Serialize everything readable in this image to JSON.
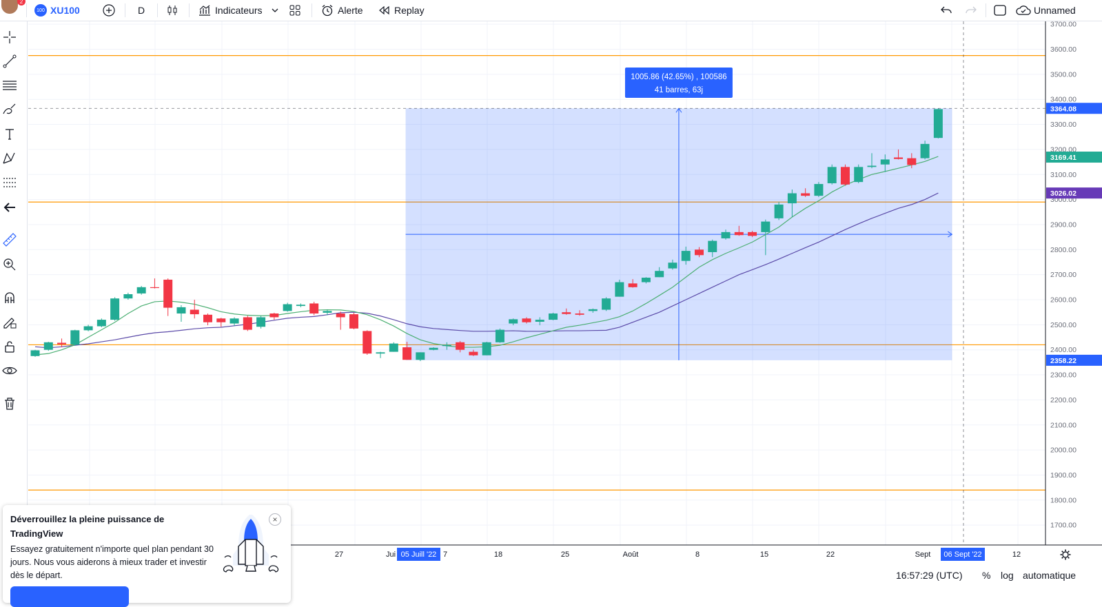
{
  "topbar": {
    "avatar_badge": "2",
    "symbol_badge": "100",
    "symbol": "XU100",
    "interval": "D",
    "indicators_label": "Indicateurs",
    "alert_label": "Alerte",
    "replay_label": "Replay",
    "layout_name": "Unnamed"
  },
  "price_axis": {
    "ticks": [
      "3700.00",
      "3600.00",
      "3500.00",
      "3400.00",
      "3300.00",
      "3200.00",
      "3100.00",
      "3000.00",
      "2900.00",
      "2800.00",
      "2700.00",
      "2600.00",
      "2500.00",
      "2400.00",
      "2300.00",
      "2200.00",
      "2100.00",
      "2000.00",
      "1900.00",
      "1800.00",
      "1700.00"
    ],
    "badges": [
      {
        "text": "3364.08",
        "color": "#2962ff"
      },
      {
        "text": "3169.41",
        "color": "#22ab94"
      },
      {
        "text": "3026.02",
        "color": "#673ab7"
      },
      {
        "text": "2358.22",
        "color": "#2962ff"
      }
    ]
  },
  "time_axis": {
    "ticks": [
      "27",
      "Jui",
      "7",
      "18",
      "25",
      "Août",
      "8",
      "15",
      "22",
      "Sept",
      "12"
    ],
    "badges": [
      "05 Juill '22",
      "06 Sept '22"
    ]
  },
  "measure_tooltip": {
    "line1": "1005.86 (42.65%) , 100586",
    "line2": "41 barres, 63j"
  },
  "chart_data": {
    "type": "candlestick",
    "symbol": "XU100",
    "interval": "D",
    "ylim": [
      1650,
      3730
    ],
    "candles_ohlc": [
      [
        2375,
        2400,
        2372,
        2398
      ],
      [
        2400,
        2432,
        2396,
        2430
      ],
      [
        2428,
        2445,
        2410,
        2422
      ],
      [
        2420,
        2480,
        2418,
        2478
      ],
      [
        2478,
        2500,
        2474,
        2494
      ],
      [
        2494,
        2525,
        2490,
        2520
      ],
      [
        2520,
        2610,
        2516,
        2605
      ],
      [
        2605,
        2628,
        2600,
        2622
      ],
      [
        2625,
        2655,
        2620,
        2650
      ],
      [
        2650,
        2685,
        2645,
        2648
      ],
      [
        2680,
        2685,
        2535,
        2568
      ],
      [
        2545,
        2578,
        2512,
        2570
      ],
      [
        2560,
        2600,
        2525,
        2542
      ],
      [
        2540,
        2545,
        2498,
        2510
      ],
      [
        2525,
        2528,
        2492,
        2510
      ],
      [
        2505,
        2530,
        2495,
        2525
      ],
      [
        2530,
        2536,
        2475,
        2480
      ],
      [
        2492,
        2535,
        2485,
        2530
      ],
      [
        2545,
        2548,
        2520,
        2530
      ],
      [
        2555,
        2588,
        2552,
        2582
      ],
      [
        2575,
        2585,
        2570,
        2580
      ],
      [
        2585,
        2592,
        2538,
        2545
      ],
      [
        2548,
        2560,
        2538,
        2555
      ],
      [
        2545,
        2552,
        2480,
        2530
      ],
      [
        2542,
        2548,
        2482,
        2485
      ],
      [
        2475,
        2478,
        2380,
        2385
      ],
      [
        2385,
        2392,
        2367,
        2390
      ],
      [
        2392,
        2430,
        2392,
        2425
      ],
      [
        2410,
        2432,
        2360,
        2360
      ],
      [
        2360,
        2390,
        2355,
        2390
      ],
      [
        2400,
        2410,
        2398,
        2408
      ],
      [
        2415,
        2430,
        2400,
        2420
      ],
      [
        2430,
        2435,
        2390,
        2400
      ],
      [
        2392,
        2400,
        2375,
        2378
      ],
      [
        2378,
        2432,
        2378,
        2430
      ],
      [
        2430,
        2485,
        2428,
        2480
      ],
      [
        2505,
        2525,
        2498,
        2522
      ],
      [
        2525,
        2530,
        2505,
        2510
      ],
      [
        2512,
        2530,
        2498,
        2520
      ],
      [
        2520,
        2548,
        2518,
        2545
      ],
      [
        2550,
        2565,
        2540,
        2543
      ],
      [
        2545,
        2558,
        2536,
        2540
      ],
      [
        2555,
        2565,
        2548,
        2562
      ],
      [
        2560,
        2610,
        2555,
        2605
      ],
      [
        2612,
        2680,
        2612,
        2670
      ],
      [
        2665,
        2682,
        2648,
        2650
      ],
      [
        2670,
        2690,
        2665,
        2688
      ],
      [
        2690,
        2730,
        2690,
        2715
      ],
      [
        2725,
        2760,
        2720,
        2748
      ],
      [
        2755,
        2812,
        2740,
        2795
      ],
      [
        2800,
        2810,
        2770,
        2778
      ],
      [
        2790,
        2840,
        2770,
        2835
      ],
      [
        2845,
        2880,
        2840,
        2870
      ],
      [
        2870,
        2895,
        2855,
        2858
      ],
      [
        2870,
        2875,
        2850,
        2855
      ],
      [
        2870,
        2920,
        2778,
        2912
      ],
      [
        2925,
        2990,
        2918,
        2980
      ],
      [
        2985,
        3040,
        2930,
        3025
      ],
      [
        3025,
        3045,
        3010,
        3015
      ],
      [
        3015,
        3070,
        3010,
        3062
      ],
      [
        3065,
        3140,
        3060,
        3130
      ],
      [
        3130,
        3140,
        3055,
        3060
      ],
      [
        3070,
        3140,
        3065,
        3130
      ],
      [
        3130,
        3185,
        3125,
        3135
      ],
      [
        3140,
        3180,
        3110,
        3160
      ],
      [
        3168,
        3200,
        3160,
        3162
      ],
      [
        3165,
        3185,
        3125,
        3138
      ],
      [
        3165,
        3235,
        3160,
        3222
      ],
      [
        3246,
        3364,
        3244,
        3361
      ]
    ],
    "ma_fast": [
      2380,
      2385,
      2400,
      2420,
      2450,
      2480,
      2510,
      2545,
      2575,
      2592,
      2595,
      2590,
      2582,
      2568,
      2552,
      2543,
      2538,
      2536,
      2537,
      2545,
      2552,
      2558,
      2560,
      2559,
      2553,
      2540,
      2520,
      2495,
      2465,
      2440,
      2425,
      2416,
      2410,
      2410,
      2412,
      2418,
      2432,
      2448,
      2462,
      2476,
      2490,
      2498,
      2508,
      2518,
      2532,
      2555,
      2585,
      2617,
      2650,
      2690,
      2730,
      2760,
      2785,
      2807,
      2830,
      2860,
      2890,
      2930,
      2965,
      2995,
      3030,
      3058,
      3080,
      3100,
      3112,
      3125,
      3138,
      3152,
      3172
    ],
    "ma_slow": [
      2412,
      2408,
      2412,
      2418,
      2424,
      2432,
      2440,
      2450,
      2460,
      2468,
      2472,
      2478,
      2484,
      2488,
      2490,
      2496,
      2502,
      2510,
      2518,
      2526,
      2530,
      2533,
      2540,
      2548,
      2550,
      2546,
      2535,
      2520,
      2504,
      2492,
      2485,
      2481,
      2477,
      2474,
      2474,
      2475,
      2476,
      2474,
      2474,
      2475,
      2476,
      2476,
      2477,
      2478,
      2490,
      2510,
      2530,
      2550,
      2575,
      2600,
      2625,
      2650,
      2675,
      2700,
      2720,
      2740,
      2762,
      2785,
      2808,
      2830,
      2855,
      2880,
      2903,
      2925,
      2945,
      2965,
      2980,
      3000,
      3026
    ],
    "horizontal_levels": [
      3575,
      2990,
      2420,
      1840
    ],
    "measure": {
      "start_index": 28,
      "end_index": 68,
      "low": 2358.22,
      "high": 3364.08,
      "change": 1005.86,
      "change_pct": 42.65,
      "bars": 41,
      "days": 63
    }
  },
  "promo": {
    "title": "Déverrouillez la pleine puissance de TradingView",
    "body": "Essayez gratuitement n'importe quel plan pendant 30 jours. Nous vous aiderons à mieux trader et investir dès le départ.",
    "close": "×"
  },
  "bottom": {
    "clock": "16:57:29 (UTC)",
    "percent": "%",
    "log": "log",
    "auto": "automatique"
  },
  "colors": {
    "up": "#22ab94",
    "down": "#f23645",
    "ma_fast": "#4caf73",
    "ma_slow": "#5b4aa8",
    "levels": "#ff9800",
    "measure_fill": "#2962ff"
  }
}
